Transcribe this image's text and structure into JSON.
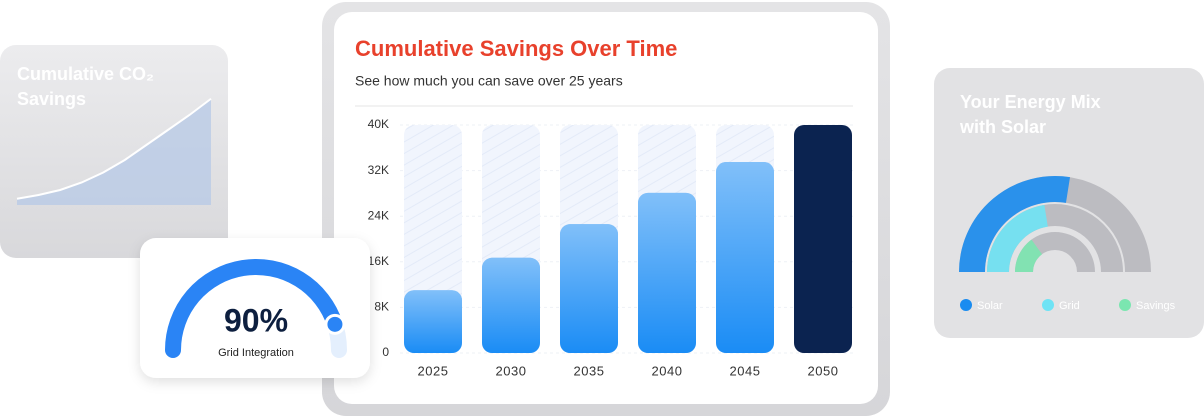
{
  "chart_data": [
    {
      "type": "area",
      "title": "Cumulative CO₂ Savings",
      "values": [
        5,
        8,
        12,
        18,
        26,
        36,
        48,
        60,
        72,
        85
      ],
      "ylim": [
        0,
        100
      ],
      "color": "#b9cbe6"
    },
    {
      "type": "bar",
      "title": "Cumulative Savings Over Time",
      "subtitle": "See how much you can save over 25 years",
      "categories": [
        "2025",
        "2030",
        "2035",
        "2040",
        "2045",
        "2050"
      ],
      "values": [
        11000,
        16700,
        22600,
        28100,
        33500,
        40000
      ],
      "colors": [
        "#1a8cf5",
        "#1a8cf5",
        "#1a8cf5",
        "#1a8cf5",
        "#1a8cf5",
        "#0b2350"
      ],
      "ylim": [
        0,
        40000
      ],
      "yticks": [
        0,
        {
          "value": 8000,
          "label": "8K"
        },
        {
          "value": 16000,
          "label": "16K"
        },
        {
          "value": 24000,
          "label": "24K"
        },
        {
          "value": 32000,
          "label": "32K"
        },
        {
          "value": 40000,
          "label": "40K"
        }
      ],
      "grid": true
    },
    {
      "type": "gauge",
      "values": [
        90
      ],
      "value_labels": [
        "90%"
      ],
      "label": "Grid Integration",
      "ylim": [
        0,
        100
      ],
      "color": "#2a84f5"
    },
    {
      "type": "donut",
      "title": "Your Energy Mix with Solar",
      "ylim": [
        0,
        100
      ],
      "series": [
        {
          "name": "Solar",
          "color": "#1a8cf0",
          "values": [
            55
          ]
        },
        {
          "name": "Grid",
          "color": "#6ee3f5",
          "values": [
            45
          ]
        },
        {
          "name": "Savings",
          "color": "#7be6b0",
          "values": [
            30
          ]
        }
      ]
    }
  ]
}
